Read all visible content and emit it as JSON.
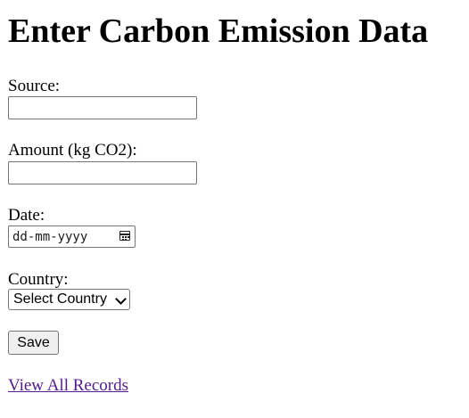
{
  "page": {
    "title": "Enter Carbon Emission Data"
  },
  "form": {
    "source_label": "Source:",
    "source_value": "",
    "amount_label": "Amount (kg CO2):",
    "amount_value": "",
    "date_label": "Date:",
    "date_placeholder": "dd-mm-yyyy",
    "country_label": "Country:",
    "country_selected": "Select Country",
    "save_label": "Save"
  },
  "links": {
    "view_all": "View All Records"
  },
  "colors": {
    "visited_link": "#551a8b",
    "button_bg": "#efefef",
    "input_border": "#767676"
  },
  "icons": {
    "date_picker": "calendar-icon",
    "select_arrow": "chevron-down-icon"
  }
}
